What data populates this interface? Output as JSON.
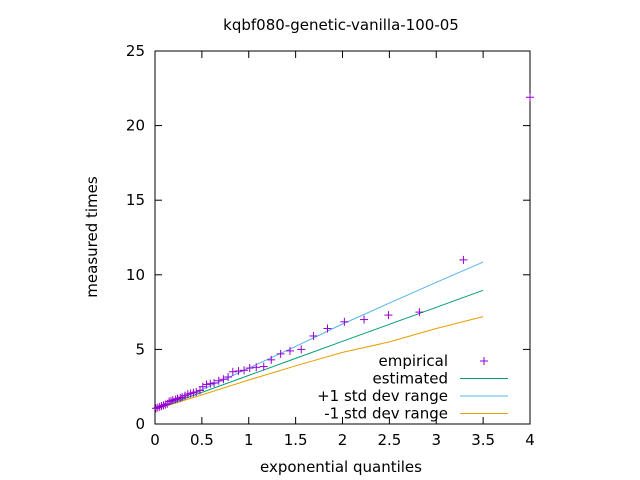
{
  "chart_data": {
    "type": "scatter",
    "title": "kqbf080-genetic-vanilla-100-05",
    "xlabel": "exponential quantiles",
    "ylabel": "measured times",
    "xlim": [
      0,
      4
    ],
    "ylim": [
      0,
      25
    ],
    "xticks": [
      0,
      0.5,
      1,
      1.5,
      2,
      2.5,
      3,
      3.5,
      4
    ],
    "xtick_labels": [
      "0",
      "0.5",
      "1",
      "1.5",
      "2",
      "2.5",
      "3",
      "3.5",
      "4"
    ],
    "yticks": [
      0,
      5,
      10,
      15,
      20,
      25
    ],
    "ytick_labels": [
      "0",
      "5",
      "10",
      "15",
      "20",
      "25"
    ],
    "grid": false,
    "legend_position": "bottom-right",
    "series": [
      {
        "name": "empirical",
        "kind": "points",
        "marker": "+",
        "color": "#9400d3",
        "x": [
          0.01,
          0.03,
          0.05,
          0.07,
          0.09,
          0.11,
          0.13,
          0.15,
          0.17,
          0.19,
          0.22,
          0.24,
          0.27,
          0.29,
          0.32,
          0.35,
          0.38,
          0.41,
          0.44,
          0.48,
          0.51,
          0.55,
          0.59,
          0.63,
          0.68,
          0.73,
          0.78,
          0.83,
          0.89,
          0.95,
          1.01,
          1.08,
          1.16,
          1.24,
          1.34,
          1.44,
          1.56,
          1.69,
          1.84,
          2.02,
          2.23,
          2.49,
          2.82,
          3.29,
          4.0
        ],
        "y": [
          1.05,
          1.1,
          1.15,
          1.2,
          1.25,
          1.3,
          1.35,
          1.5,
          1.55,
          1.6,
          1.65,
          1.7,
          1.75,
          1.8,
          1.9,
          2.0,
          2.05,
          2.1,
          2.15,
          2.25,
          2.5,
          2.65,
          2.7,
          2.75,
          2.9,
          3.0,
          3.15,
          3.5,
          3.55,
          3.6,
          3.75,
          3.8,
          3.85,
          4.3,
          4.7,
          4.9,
          5.0,
          5.9,
          6.4,
          6.85,
          7.0,
          7.3,
          7.5,
          11.0,
          21.9
        ]
      },
      {
        "name": "estimated",
        "kind": "line",
        "color": "#009e73",
        "x": [
          0,
          0.5,
          1,
          1.5,
          2,
          2.5,
          3,
          3.5
        ],
        "y": [
          0.98,
          2.12,
          3.26,
          4.4,
          5.54,
          6.68,
          7.82,
          8.96
        ]
      },
      {
        "name": "+1 std dev range",
        "kind": "line",
        "color": "#56b4e9",
        "x": [
          0,
          0.5,
          1,
          1.5,
          2,
          2.5,
          3,
          3.5
        ],
        "y": [
          0.98,
          2.3,
          3.75,
          5.2,
          6.7,
          8.1,
          9.5,
          10.85
        ]
      },
      {
        "name": "-1 std dev range",
        "kind": "line",
        "color": "#e69f00",
        "x": [
          0,
          0.5,
          1,
          1.5,
          2,
          2.5,
          3,
          3.5
        ],
        "y": [
          0.98,
          1.95,
          2.95,
          3.9,
          4.8,
          5.5,
          6.4,
          7.2
        ]
      }
    ]
  }
}
